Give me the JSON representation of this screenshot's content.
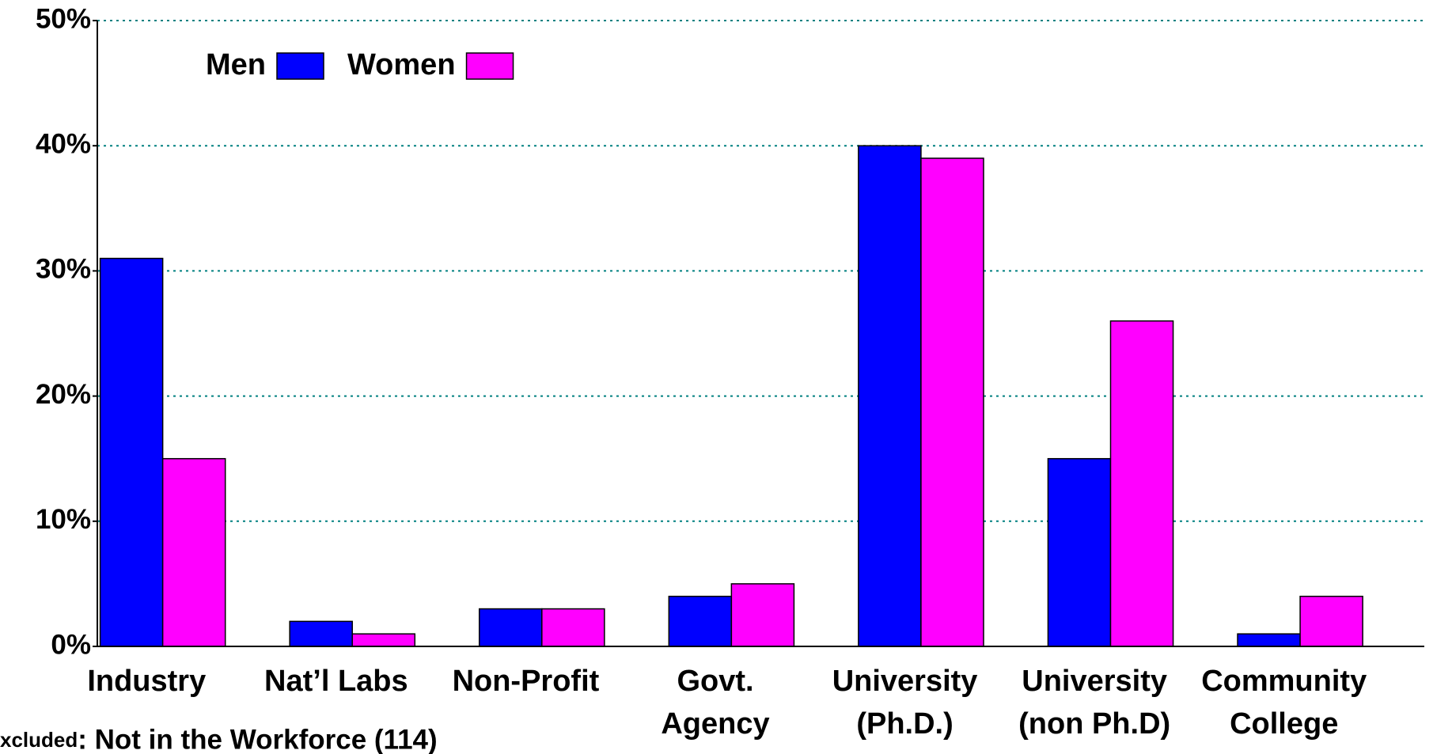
{
  "chart_data": {
    "type": "bar",
    "categories": [
      "Industry",
      "Nat’l Labs",
      "Non-Profit",
      "Govt.\nAgency",
      "University\n(Ph.D.)",
      "University\n(non Ph.D)",
      "Community\nCollege"
    ],
    "series": [
      {
        "name": "Men",
        "color": "#0000ff",
        "values": [
          31,
          2,
          3,
          4,
          40,
          15,
          1
        ]
      },
      {
        "name": "Women",
        "color": "#ff00ff",
        "values": [
          15,
          1,
          3,
          5,
          39,
          26,
          4
        ]
      }
    ],
    "ylim": [
      0,
      50
    ],
    "yticks": [
      {
        "value": 0,
        "label": "0%"
      },
      {
        "value": 10,
        "label": "10%"
      },
      {
        "value": 20,
        "label": "20%"
      },
      {
        "value": 30,
        "label": "30%"
      },
      {
        "value": 40,
        "label": "40%"
      },
      {
        "value": 50,
        "label": "50%"
      }
    ],
    "grid": true,
    "legend": "upper left",
    "note": [
      "xcluded",
      ": Not in the Workforce (114)"
    ]
  }
}
